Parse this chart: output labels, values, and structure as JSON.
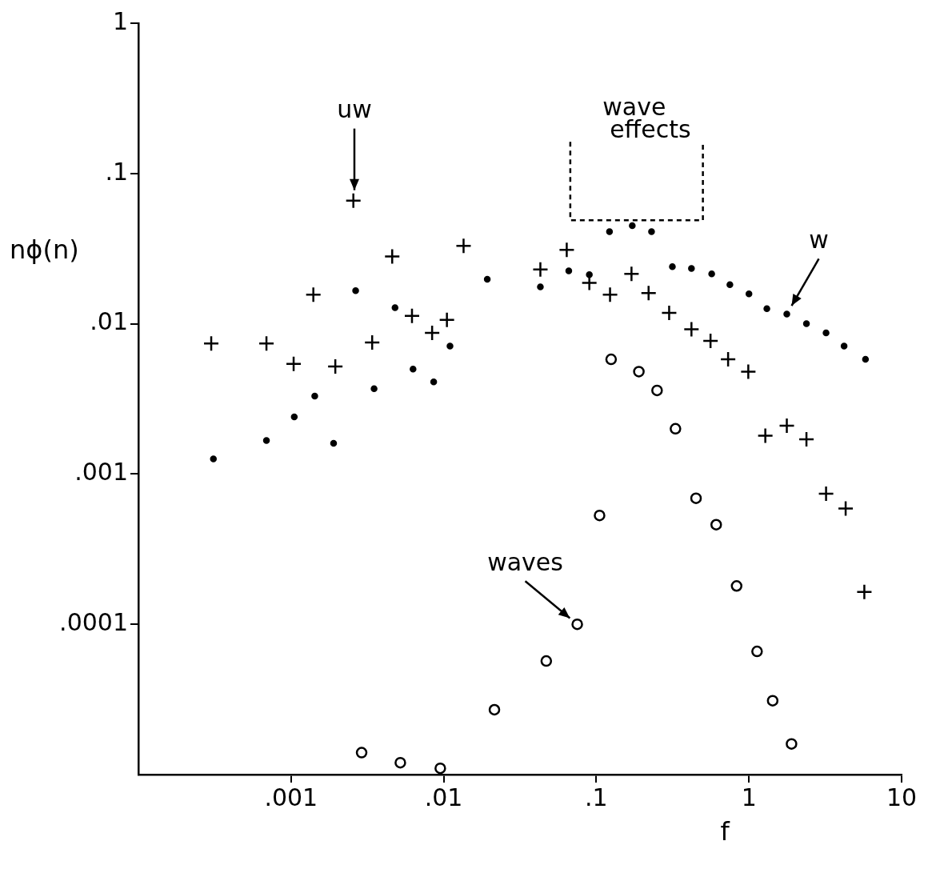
{
  "chart_data": {
    "type": "scatter",
    "xlabel": "f",
    "ylabel": "nϕ(n)",
    "log": "xy",
    "grid": false,
    "legend": false,
    "xlim": [
      0.0001,
      10
    ],
    "xticks": [
      {
        "value": 0.001,
        "label": ".001"
      },
      {
        "value": 0.01,
        "label": ".01"
      },
      {
        "value": 0.1,
        "label": ".1"
      },
      1,
      10
    ],
    "ylim": [
      1e-05,
      1
    ],
    "yticks": [
      {
        "value": 0.0001,
        "label": ".0001"
      },
      {
        "value": 0.001,
        "label": ".001"
      },
      {
        "value": 0.01,
        "label": ".01"
      },
      {
        "value": 0.1,
        "label": ".1"
      },
      1
    ],
    "series": [
      {
        "color": "#000000",
        "marker": "cross",
        "x": [
          0.0003,
          0.00069,
          0.00104,
          0.0014,
          0.00195,
          0.00256,
          0.0034,
          0.0046,
          0.0062,
          0.0084,
          0.0105,
          0.0135,
          0.043,
          0.064,
          0.09,
          0.123,
          0.17,
          0.22,
          0.3,
          0.42,
          0.56,
          0.73,
          0.99,
          1.28,
          1.77,
          2.38,
          3.2,
          4.3,
          5.7
        ],
        "values": [
          0.0074,
          0.0074,
          0.0054,
          0.0156,
          0.0052,
          0.066,
          0.0075,
          0.028,
          0.0113,
          0.0087,
          0.0106,
          0.033,
          0.023,
          0.031,
          0.0187,
          0.0156,
          0.0215,
          0.016,
          0.0118,
          0.0092,
          0.0077,
          0.0058,
          0.0048,
          0.0018,
          0.0021,
          0.0017,
          0.00074,
          0.00059,
          0.000164
        ]
      },
      {
        "color": "#000000",
        "marker": "circle",
        "x": [
          0.00031,
          0.00069,
          0.00105,
          0.00143,
          0.0019,
          0.00265,
          0.0035,
          0.0048,
          0.0063,
          0.0086,
          0.011,
          0.0193,
          0.043,
          0.066,
          0.09,
          0.122,
          0.172,
          0.23,
          0.315,
          0.42,
          0.57,
          0.75,
          1.0,
          1.31,
          1.77,
          2.38,
          3.2,
          4.2,
          5.8
        ],
        "values": [
          0.00126,
          0.00167,
          0.0024,
          0.0033,
          0.0016,
          0.0166,
          0.0037,
          0.0128,
          0.005,
          0.0041,
          0.0071,
          0.0198,
          0.0176,
          0.0225,
          0.0212,
          0.041,
          0.045,
          0.041,
          0.024,
          0.0233,
          0.0215,
          0.0182,
          0.0158,
          0.0126,
          0.0116,
          0.01,
          0.0087,
          0.0071,
          0.0058
        ]
      },
      {
        "color": "#000000",
        "marker": "circle",
        "x": [
          0.0029,
          0.0052,
          0.0095,
          0.0215,
          0.047,
          0.075,
          0.105,
          0.125,
          0.19,
          0.25,
          0.33,
          0.45,
          0.61,
          0.83,
          1.13,
          1.43,
          1.9
        ],
        "values": [
          1.4e-05,
          1.2e-05,
          1.1e-05,
          2.7e-05,
          5.7e-05,
          0.0001,
          0.00053,
          0.0058,
          0.0048,
          0.0036,
          0.002,
          0.00069,
          0.00046,
          0.00018,
          6.6e-05,
          3.1e-05,
          1.6e-05
        ]
      }
    ],
    "annotations": [
      "uw",
      "wave effects",
      {
        "text": "w",
        "x": 1.77,
        "y": 0.0116
      },
      {
        "text": "waves",
        "x": 0.075,
        "y": 0.0001
      }
    ]
  }
}
